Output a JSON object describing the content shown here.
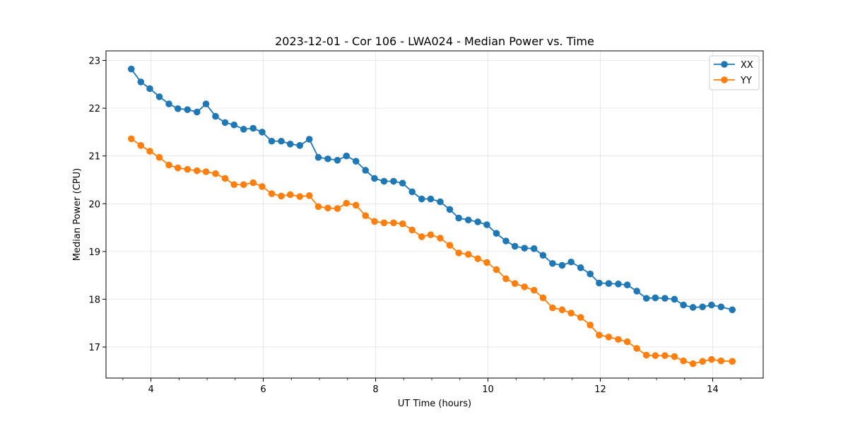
{
  "chart_data": {
    "type": "line",
    "title": "2023-12-01 - Cor 106 - LWA024 - Median Power vs. Time",
    "xlabel": "UT Time (hours)",
    "ylabel": "Median Power (CPU)",
    "xlim": [
      3.2,
      14.9
    ],
    "ylim": [
      16.35,
      23.2
    ],
    "xticks": [
      4,
      6,
      8,
      10,
      12,
      14
    ],
    "yticks": [
      17,
      18,
      19,
      20,
      21,
      22,
      23
    ],
    "grid": true,
    "legend_position": "top-right",
    "x": [
      3.65,
      3.82,
      3.98,
      4.15,
      4.32,
      4.48,
      4.65,
      4.82,
      4.98,
      5.15,
      5.32,
      5.48,
      5.65,
      5.82,
      5.98,
      6.15,
      6.32,
      6.48,
      6.65,
      6.82,
      6.98,
      7.15,
      7.32,
      7.48,
      7.65,
      7.82,
      7.98,
      8.15,
      8.32,
      8.48,
      8.65,
      8.82,
      8.98,
      9.15,
      9.32,
      9.48,
      9.65,
      9.82,
      9.98,
      10.15,
      10.32,
      10.48,
      10.65,
      10.82,
      10.98,
      11.15,
      11.32,
      11.48,
      11.65,
      11.82,
      11.98,
      12.15,
      12.32,
      12.48,
      12.65,
      12.82,
      12.98,
      13.15,
      13.32,
      13.48,
      13.65,
      13.82,
      13.98,
      14.15,
      14.35
    ],
    "series": [
      {
        "name": "XX",
        "color": "#1f77b4",
        "values": [
          22.82,
          22.55,
          22.41,
          22.24,
          22.09,
          21.99,
          21.97,
          21.92,
          22.09,
          21.83,
          21.7,
          21.65,
          21.56,
          21.58,
          21.5,
          21.31,
          21.31,
          21.25,
          21.22,
          21.35,
          20.97,
          20.94,
          20.91,
          21.0,
          20.89,
          20.7,
          20.53,
          20.47,
          20.47,
          20.43,
          20.25,
          20.1,
          20.1,
          20.04,
          19.88,
          19.7,
          19.66,
          19.62,
          19.56,
          19.38,
          19.22,
          19.11,
          19.07,
          19.06,
          18.92,
          18.75,
          18.71,
          18.78,
          18.66,
          18.53,
          18.34,
          18.33,
          18.32,
          18.3,
          18.17,
          18.02,
          18.03,
          18.02,
          18.0,
          17.88,
          17.83,
          17.84,
          17.88,
          17.84,
          17.78
        ]
      },
      {
        "name": "YY",
        "color": "#ff7f0e",
        "values": [
          21.36,
          21.22,
          21.1,
          20.97,
          20.81,
          20.75,
          20.72,
          20.69,
          20.67,
          20.63,
          20.53,
          20.4,
          20.4,
          20.44,
          20.36,
          20.21,
          20.16,
          20.19,
          20.15,
          20.17,
          19.94,
          19.91,
          19.9,
          20.01,
          19.97,
          19.75,
          19.63,
          19.6,
          19.6,
          19.58,
          19.45,
          19.31,
          19.35,
          19.28,
          19.13,
          18.97,
          18.94,
          18.85,
          18.77,
          18.62,
          18.43,
          18.33,
          18.26,
          18.19,
          18.03,
          17.82,
          17.78,
          17.71,
          17.62,
          17.46,
          17.25,
          17.21,
          17.16,
          17.11,
          16.97,
          16.83,
          16.82,
          16.82,
          16.8,
          16.71,
          16.65,
          16.7,
          16.74,
          16.71,
          16.7
        ]
      }
    ]
  }
}
